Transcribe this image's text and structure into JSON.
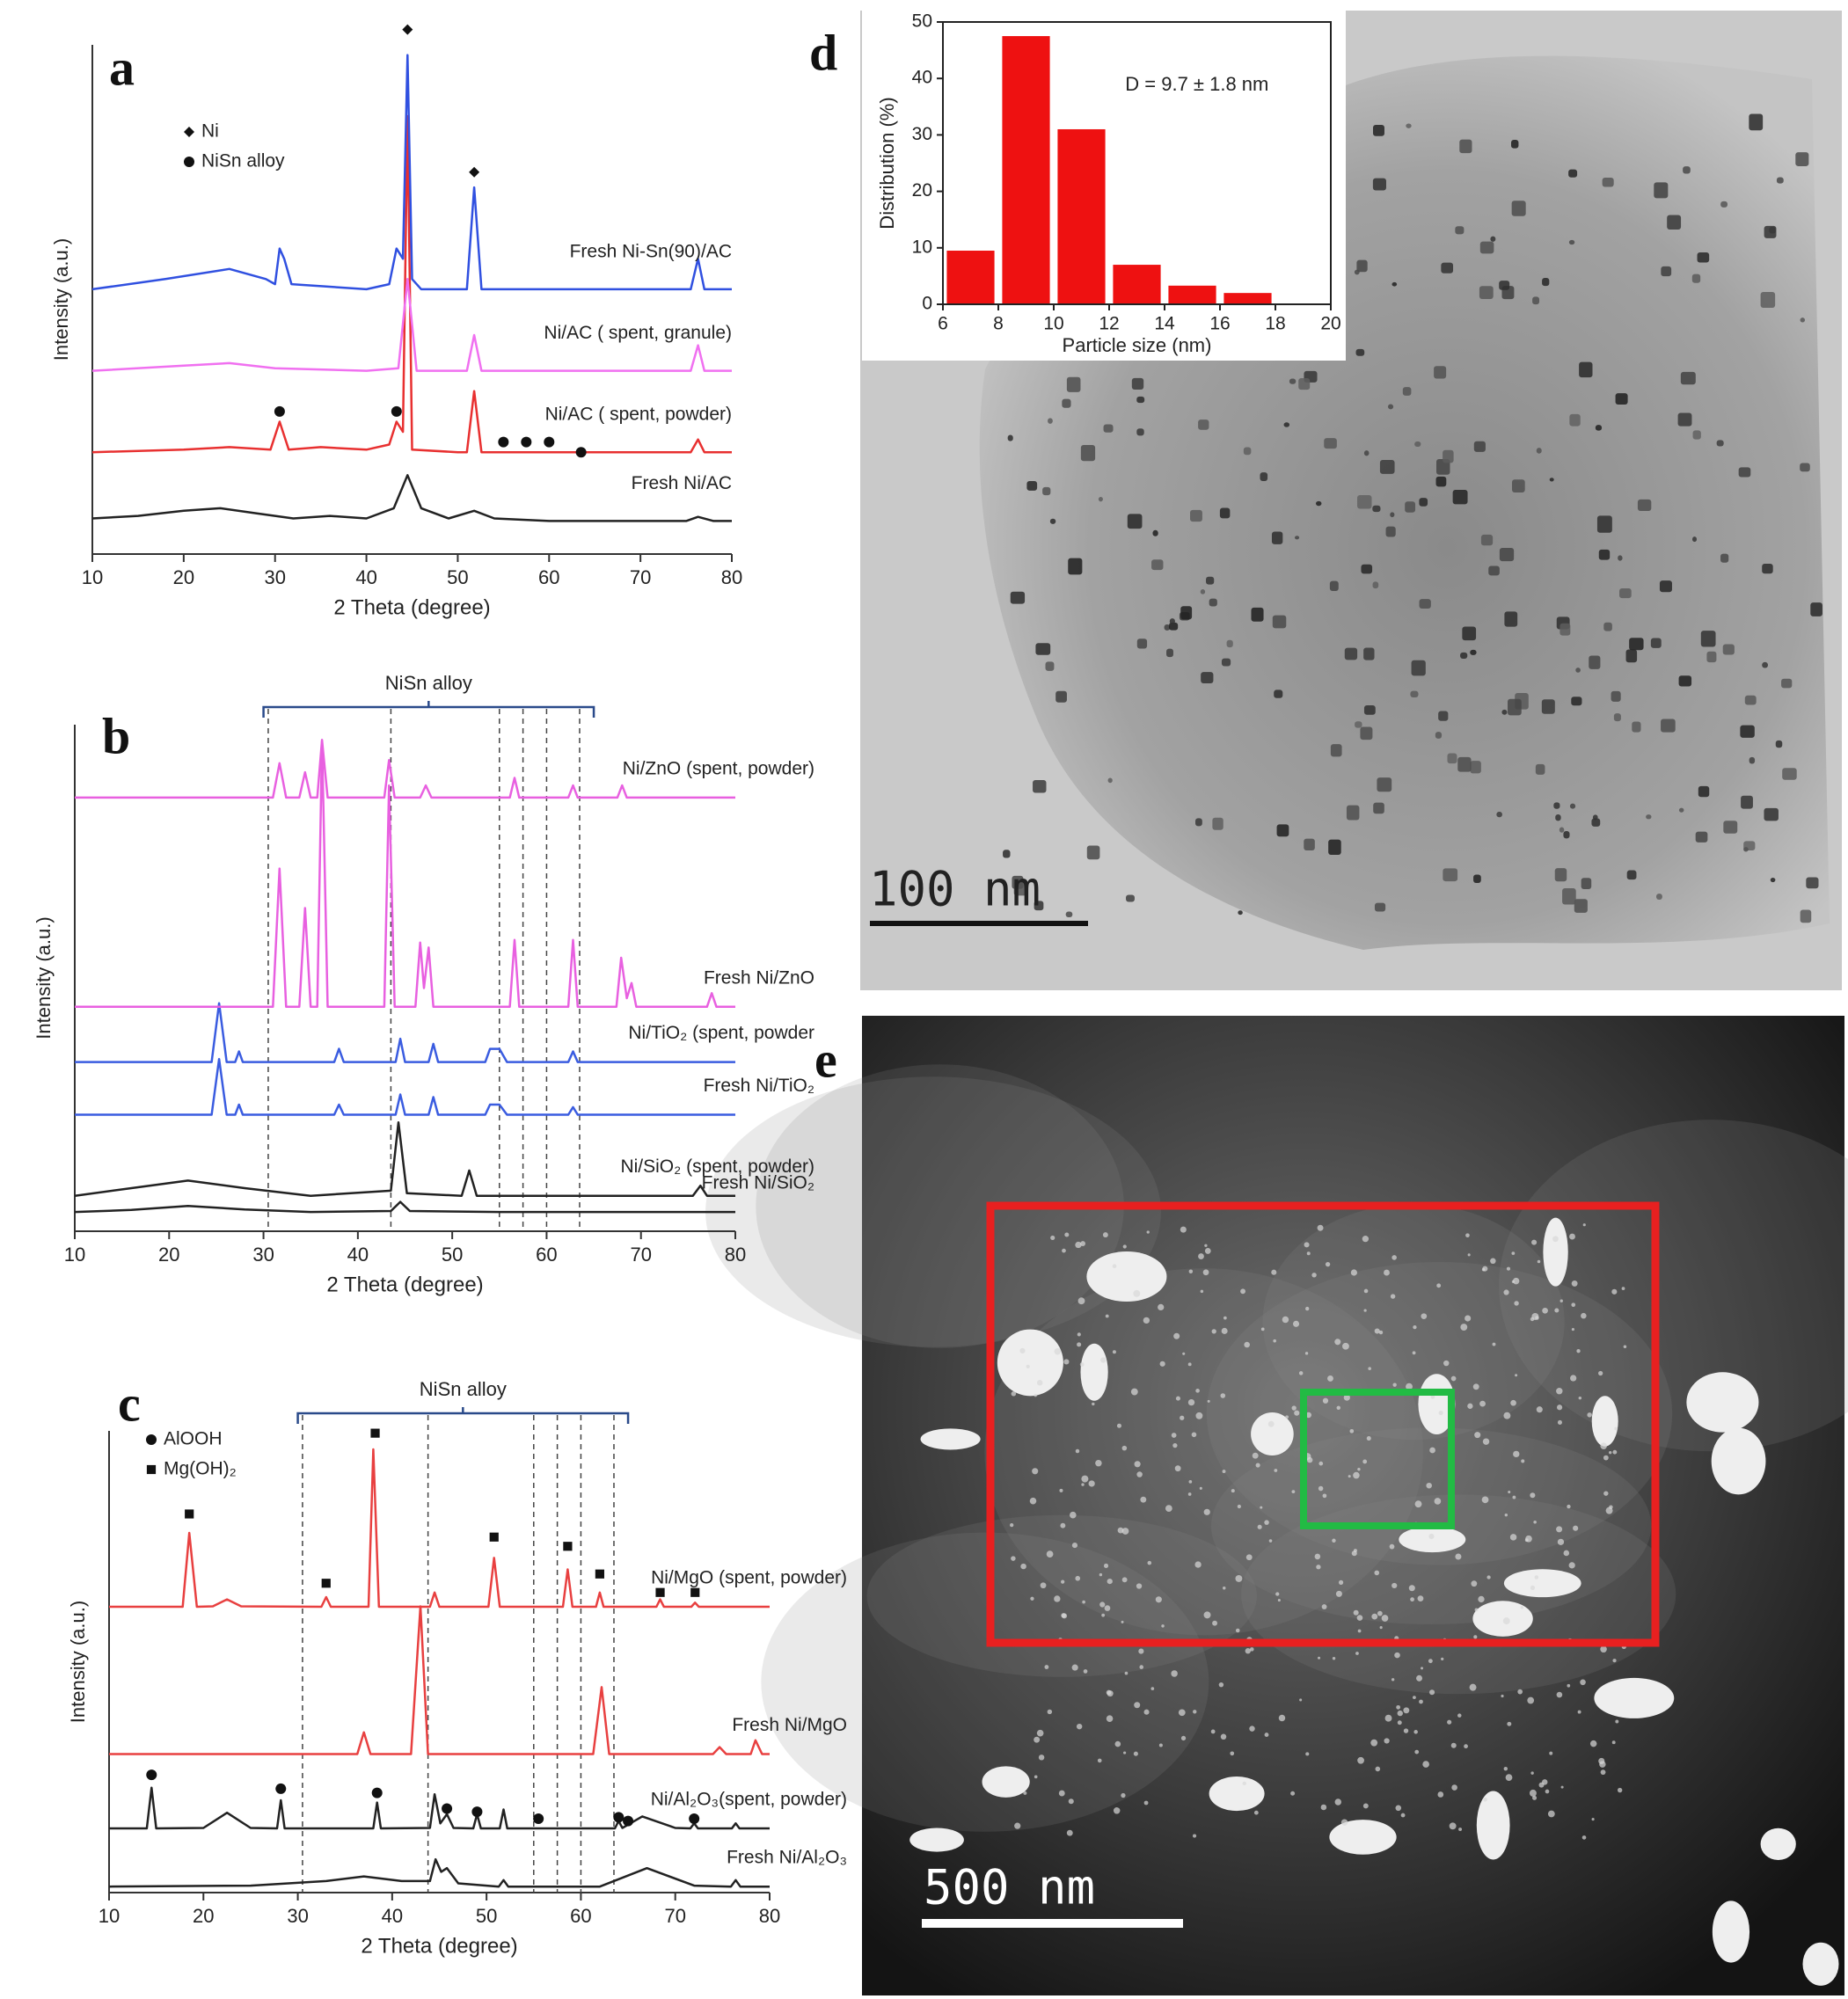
{
  "chart_data": [
    {
      "type": "line",
      "label": "a",
      "xlabel": "2 Theta (degree)",
      "ylabel": "Intensity (a.u.)",
      "xlim": [
        10,
        80
      ],
      "xticks": [
        10,
        20,
        30,
        40,
        50,
        60,
        70,
        80
      ],
      "ylim": [
        0,
        100
      ],
      "series": [
        {
          "name": "Fresh Ni/AC",
          "color": "#222222",
          "x": [
            10,
            15,
            20,
            24,
            28,
            32,
            36,
            40,
            43,
            44.5,
            46,
            49,
            51.8,
            54,
            60,
            70,
            75,
            76.3,
            78,
            80
          ],
          "values": [
            7,
            7.5,
            8.5,
            9,
            8,
            7,
            7.5,
            7,
            9,
            15.5,
            9,
            7,
            8.5,
            7,
            6.5,
            6.5,
            6.5,
            7.3,
            6.5,
            6.5
          ]
        },
        {
          "name": "Ni/AC ( spent, powder)",
          "color": "#e83030",
          "x": [
            10,
            20,
            25,
            29.5,
            30.5,
            31.5,
            35,
            40,
            42.5,
            43.3,
            44,
            44.5,
            45,
            50,
            51,
            51.8,
            52.6,
            60,
            70,
            75.5,
            76.3,
            77,
            80
          ],
          "values": [
            20,
            20.5,
            21,
            20.5,
            26,
            20.5,
            21,
            20.5,
            21.5,
            26,
            24,
            86,
            20.5,
            20,
            20,
            32,
            20,
            20,
            20,
            20,
            22.5,
            20,
            20
          ]
        },
        {
          "name": "Ni/AC ( spent, granule)",
          "color": "#f070f0",
          "x": [
            10,
            20,
            25,
            30,
            40,
            43.5,
            44.5,
            45.5,
            51,
            51.8,
            52.6,
            60,
            75.5,
            76.3,
            77,
            80
          ],
          "values": [
            36,
            37,
            37.5,
            36.5,
            36,
            36.5,
            54,
            36,
            36,
            43,
            36,
            36,
            36,
            41,
            36,
            36
          ]
        },
        {
          "name": "Fresh Ni-Sn(90)/AC",
          "color": "#3050e0",
          "x": [
            10,
            18,
            25,
            29,
            30,
            30.5,
            31,
            31.8,
            40,
            42.5,
            43.3,
            44,
            44.5,
            45,
            46,
            51,
            51.8,
            52.6,
            60,
            75.5,
            76.3,
            77,
            80
          ],
          "values": [
            52,
            54,
            56,
            54,
            53,
            60,
            58,
            53,
            52,
            53,
            60,
            58,
            98,
            54,
            52,
            52,
            72,
            52,
            52,
            52,
            58,
            52,
            52
          ]
        }
      ],
      "markers": [
        {
          "symbol": "diamond",
          "x": 44.5,
          "y": 103
        },
        {
          "symbol": "diamond",
          "x": 51.8,
          "y": 75
        },
        {
          "symbol": "circle",
          "x": 30.5,
          "y": 28
        },
        {
          "symbol": "circle",
          "x": 43.3,
          "y": 28
        },
        {
          "symbol": "circle",
          "x": 55,
          "y": 22
        },
        {
          "symbol": "circle",
          "x": 57.5,
          "y": 22
        },
        {
          "symbol": "circle",
          "x": 60,
          "y": 22
        },
        {
          "symbol": "circle",
          "x": 63.5,
          "y": 20
        }
      ],
      "legend": [
        {
          "symbol": "diamond",
          "label": "Ni"
        },
        {
          "symbol": "circle",
          "label": "NiSn alloy"
        }
      ]
    },
    {
      "type": "line",
      "label": "b",
      "xlabel": "2 Theta (degree)",
      "ylabel": "Intensity (a.u.)",
      "xlim": [
        10,
        80
      ],
      "xticks": [
        10,
        20,
        30,
        40,
        50,
        60,
        70,
        80
      ],
      "ylim": [
        0,
        100
      ],
      "ref_lines": [
        30.5,
        43.5,
        55,
        57.5,
        60,
        63.5
      ],
      "bracket": {
        "label": "NiSn alloy",
        "range": [
          30,
          65
        ]
      },
      "series": [
        {
          "name": "Fresh Ni/SiO₂",
          "color": "#222222",
          "x": [
            10,
            16,
            22,
            28,
            35,
            43.5,
            44.5,
            45.5,
            55,
            70,
            80
          ],
          "values": [
            3.8,
            4.2,
            5,
            4.3,
            3.8,
            4,
            5.8,
            4,
            3.8,
            3.8,
            3.8
          ]
        },
        {
          "name": "Ni/SiO₂ (spent, powder)",
          "color": "#222222",
          "x": [
            10,
            16,
            22,
            28,
            35,
            43.5,
            44.3,
            45.2,
            51,
            51.8,
            52.6,
            70,
            75.5,
            76.3,
            77,
            80
          ],
          "values": [
            7,
            8.5,
            10,
            8.5,
            7,
            8,
            21.5,
            7.5,
            7,
            12,
            7,
            7,
            7,
            9,
            7,
            7
          ]
        },
        {
          "name": "Fresh Ni/TiO₂",
          "color": "#3a5ce0",
          "x": [
            10,
            24.5,
            25.3,
            26.1,
            27,
            27.4,
            27.8,
            37.5,
            38,
            38.5,
            44,
            44.5,
            45,
            47.5,
            48,
            48.5,
            53.5,
            54,
            55,
            55.8,
            62.3,
            62.8,
            63.3,
            80
          ],
          "values": [
            23,
            23,
            34,
            23,
            23,
            25,
            23,
            23,
            25,
            23,
            23,
            27,
            23,
            23,
            26.5,
            23,
            23,
            25,
            25,
            23,
            23,
            24.5,
            23,
            23
          ]
        },
        {
          "name": "Ni/TiO₂ (spent, powder",
          "color": "#3a5ce0",
          "x": [
            10,
            24.5,
            25.3,
            26.1,
            27,
            27.4,
            27.8,
            37.5,
            38,
            38.5,
            44,
            44.5,
            45,
            47.5,
            48,
            48.5,
            53.5,
            54,
            55,
            55.8,
            62.3,
            62.8,
            63.3,
            80
          ],
          "values": [
            33.4,
            33.4,
            45,
            33.4,
            33.4,
            35.5,
            33.4,
            33.4,
            36,
            33.4,
            33.4,
            38,
            33.4,
            33.4,
            37,
            33.4,
            33.4,
            36,
            36,
            33.4,
            33.4,
            35.5,
            33.4,
            33.4
          ]
        },
        {
          "name": "Fresh Ni/ZnO",
          "color": "#e860e0",
          "x": [
            10,
            31,
            31.7,
            32.4,
            33.8,
            34.4,
            35,
            35.7,
            36.2,
            36.8,
            42.8,
            43.3,
            43.9,
            46.1,
            46.6,
            47,
            47.5,
            48,
            56.1,
            56.6,
            57.1,
            62.3,
            62.8,
            63.3,
            67.4,
            67.9,
            68.5,
            69,
            69.5,
            77,
            77.5,
            78,
            80
          ],
          "values": [
            44.3,
            44.3,
            71.6,
            44.3,
            44.3,
            63.8,
            44.3,
            44.3,
            96.7,
            44.3,
            44.3,
            88,
            44.3,
            44.3,
            57,
            48,
            56,
            44.3,
            44.3,
            57.5,
            44.3,
            44.3,
            57.5,
            44.3,
            44.3,
            54,
            46,
            49,
            44.3,
            44.3,
            47,
            44.3,
            44.3
          ]
        },
        {
          "name": "Ni/ZnO (spent, powder)",
          "color": "#e860e0",
          "x": [
            10,
            31,
            31.7,
            32.4,
            33.8,
            34.4,
            35,
            35.7,
            36.2,
            36.8,
            42.8,
            43.3,
            43.9,
            46.6,
            47.2,
            47.8,
            56.1,
            56.6,
            57.1,
            62.3,
            62.8,
            63.3,
            67.5,
            68,
            68.5,
            80
          ],
          "values": [
            85.6,
            85.6,
            92.4,
            85.6,
            85.6,
            90.6,
            85.6,
            85.6,
            97,
            85.6,
            85.6,
            93,
            85.6,
            85.6,
            88,
            85.6,
            85.6,
            89.5,
            85.6,
            85.6,
            88,
            85.6,
            85.6,
            88,
            85.6,
            85.6
          ]
        }
      ]
    },
    {
      "type": "line",
      "label": "c",
      "xlabel": "2 Theta (degree)",
      "ylabel": "Intensity (a.u.)",
      "xlim": [
        10,
        80
      ],
      "xticks": [
        10,
        20,
        30,
        40,
        50,
        60,
        70,
        80
      ],
      "ylim": [
        0,
        100
      ],
      "ref_lines": [
        30.5,
        43.8,
        55,
        57.5,
        60,
        63.5
      ],
      "bracket": {
        "label": "NiSn alloy",
        "range": [
          30,
          65
        ]
      },
      "series": [
        {
          "name": "Fresh Ni/Al₂O₃",
          "color": "#222222",
          "x": [
            10,
            25,
            33,
            37,
            41,
            44,
            44.6,
            45.2,
            45.8,
            47,
            51.3,
            51.8,
            52.3,
            62,
            67,
            72,
            75.9,
            76.4,
            76.9,
            80
          ],
          "values": [
            1.3,
            1.5,
            2.5,
            3.5,
            2.5,
            2.5,
            7.2,
            4.5,
            5.3,
            2,
            1.3,
            2.7,
            1.3,
            1.3,
            5.3,
            1.5,
            1.3,
            2.7,
            1.3,
            1.3
          ]
        },
        {
          "name": "Ni/Al₂O₃(spent, powder)",
          "color": "#222222",
          "x": [
            10,
            14,
            14.5,
            15,
            20,
            22.5,
            25,
            27.8,
            28.2,
            28.6,
            38,
            38.4,
            38.8,
            44,
            44.5,
            45.1,
            45.8,
            46.5,
            48.6,
            49,
            49.4,
            51.4,
            51.8,
            52.2,
            63.6,
            64,
            64.4,
            66.5,
            70,
            71.6,
            72,
            72.4,
            76,
            76.4,
            76.8,
            80
          ],
          "values": [
            13.9,
            13.9,
            22.7,
            13.9,
            14,
            17.3,
            14,
            13.9,
            20,
            13.9,
            13.9,
            19.5,
            13.9,
            14,
            21.3,
            15,
            17,
            14,
            13.9,
            17,
            13.9,
            13.9,
            18,
            13.9,
            13.9,
            15.5,
            14,
            16.5,
            14,
            13.9,
            15,
            13.9,
            13.9,
            15,
            13.9,
            13.9
          ]
        },
        {
          "name": "Fresh Ni/MgO",
          "color": "#e84040",
          "x": [
            10,
            30,
            36.3,
            37,
            37.7,
            42,
            43,
            43.8,
            61.3,
            62.2,
            63,
            74,
            74.7,
            75.4,
            78,
            78.5,
            79.2,
            80
          ],
          "values": [
            30,
            30,
            30,
            34.7,
            30,
            30,
            62,
            30,
            30,
            44.5,
            30,
            30,
            31.5,
            30,
            30,
            33,
            30,
            30
          ]
        },
        {
          "name": "Ni/MgO (spent, powder)",
          "color": "#e84040",
          "x": [
            10,
            17.8,
            18.5,
            19.3,
            21,
            22.5,
            24,
            32.5,
            33,
            33.5,
            37.5,
            38,
            38.6,
            44,
            44.5,
            45,
            50.2,
            50.8,
            51.4,
            58.1,
            58.6,
            59.1,
            61.6,
            62,
            62.4,
            68,
            68.4,
            68.8,
            71.7,
            72.1,
            72.5,
            80
          ],
          "values": [
            61.9,
            61.9,
            77.9,
            61.9,
            62,
            63.5,
            62,
            61.9,
            64,
            61.9,
            61.9,
            96,
            61.9,
            61.9,
            65,
            61.9,
            61.9,
            72.5,
            61.9,
            61.9,
            70,
            61.9,
            61.9,
            65,
            61.9,
            61.9,
            63.5,
            61.9,
            61.9,
            62.8,
            61.9,
            61.9
          ]
        }
      ],
      "markers": [
        {
          "symbol": "square",
          "x": 18.5,
          "y": 82
        },
        {
          "symbol": "square",
          "x": 33,
          "y": 67
        },
        {
          "symbol": "square",
          "x": 38.2,
          "y": 99.5
        },
        {
          "symbol": "square",
          "x": 50.8,
          "y": 77
        },
        {
          "symbol": "square",
          "x": 58.6,
          "y": 75
        },
        {
          "symbol": "square",
          "x": 62,
          "y": 69
        },
        {
          "symbol": "square",
          "x": 68.4,
          "y": 65
        },
        {
          "symbol": "square",
          "x": 72.1,
          "y": 65
        },
        {
          "symbol": "circle",
          "x": 14.5,
          "y": 25.5
        },
        {
          "symbol": "circle",
          "x": 28.2,
          "y": 22.5
        },
        {
          "symbol": "circle",
          "x": 38.4,
          "y": 21.6
        },
        {
          "symbol": "circle",
          "x": 45.8,
          "y": 18.2
        },
        {
          "symbol": "circle",
          "x": 49,
          "y": 17.5
        },
        {
          "symbol": "circle",
          "x": 55.5,
          "y": 16
        },
        {
          "symbol": "circle",
          "x": 64,
          "y": 16.3
        },
        {
          "symbol": "circle",
          "x": 65,
          "y": 15.5
        },
        {
          "symbol": "circle",
          "x": 72,
          "y": 16
        }
      ],
      "legend": [
        {
          "symbol": "circle",
          "label": "AlOOH"
        },
        {
          "symbol": "square",
          "label": "Mg(OH)₂"
        }
      ]
    },
    {
      "type": "histogram",
      "xlabel": "Particle size (nm)",
      "ylabel": "Distribution (%)",
      "annotation": "D = 9.7 ± 1.8 nm",
      "color": "#ee1111",
      "bins": [
        6,
        8,
        10,
        12,
        14,
        16,
        18
      ],
      "values": [
        9.5,
        47.5,
        31,
        7,
        3.3,
        2
      ],
      "xlim": [
        6,
        20
      ],
      "xticks": [
        6,
        8,
        10,
        12,
        14,
        16,
        18,
        20
      ],
      "ylim": [
        0,
        50
      ],
      "yticks": [
        0,
        10,
        20,
        30,
        40,
        50
      ]
    }
  ],
  "images": [
    {
      "label": "d",
      "scale_bar": "100 nm"
    },
    {
      "label": "e",
      "scale_bar": "500 nm"
    }
  ]
}
